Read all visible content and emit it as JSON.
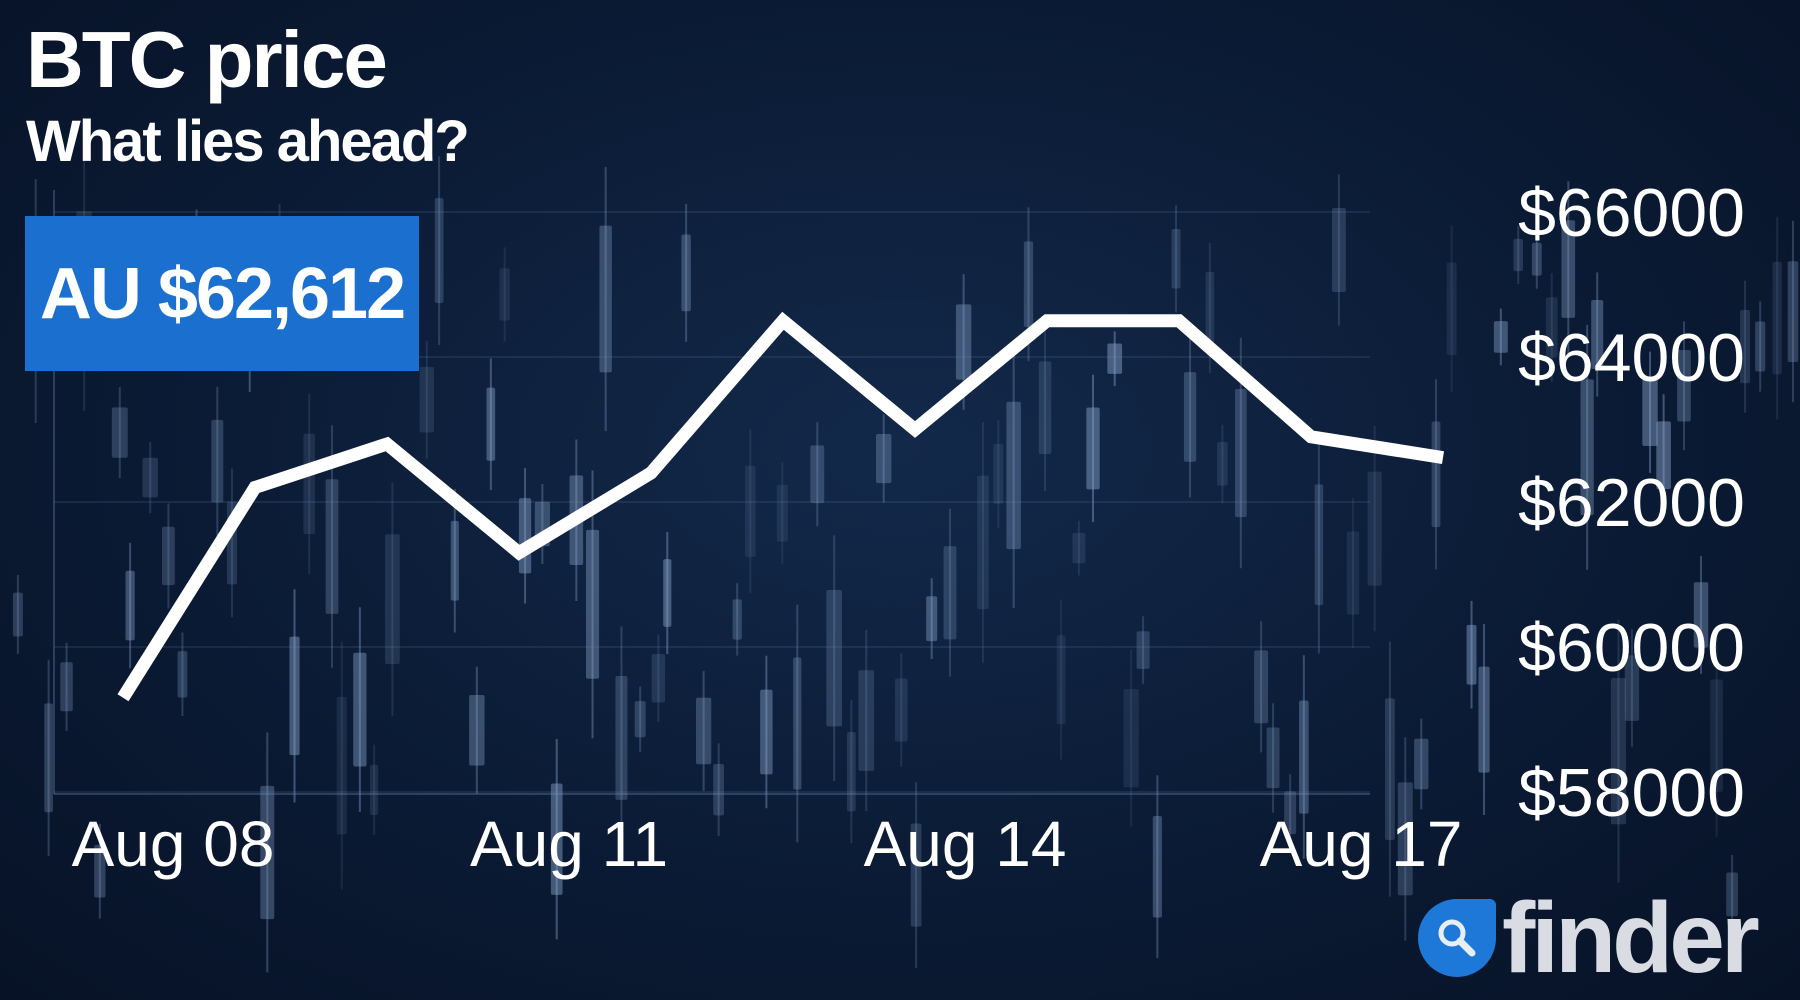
{
  "header": {
    "title": "BTC price",
    "subtitle": "What lies ahead?"
  },
  "price_badge": {
    "label": "AU $62,612",
    "color": "#1a6fcf"
  },
  "logo": {
    "text": "finder",
    "icon": "magnifier-icon",
    "color": "#1e78d8"
  },
  "chart_data": {
    "type": "line",
    "title": "BTC price",
    "subtitle": "What lies ahead?",
    "x": [
      "Aug 08",
      "Aug 09",
      "Aug 10",
      "Aug 11",
      "Aug 12",
      "Aug 13",
      "Aug 14",
      "Aug 15",
      "Aug 16",
      "Aug 17",
      "Aug 18"
    ],
    "values": [
      59300,
      62200,
      62800,
      61300,
      62400,
      64500,
      63000,
      64500,
      64500,
      62900,
      62612
    ],
    "x_tick_labels": [
      "Aug 08",
      "Aug 11",
      "Aug 14",
      "Aug 17"
    ],
    "y_tick_labels": [
      "$66000",
      "$64000",
      "$62000",
      "$60000",
      "$58000"
    ],
    "y_ticks": [
      66000,
      64000,
      62000,
      60000,
      58000
    ],
    "ylim": [
      58000,
      66000
    ],
    "xlabel": "",
    "ylabel": "",
    "line_color": "#ffffff",
    "grid": true,
    "currency": "AUD"
  }
}
